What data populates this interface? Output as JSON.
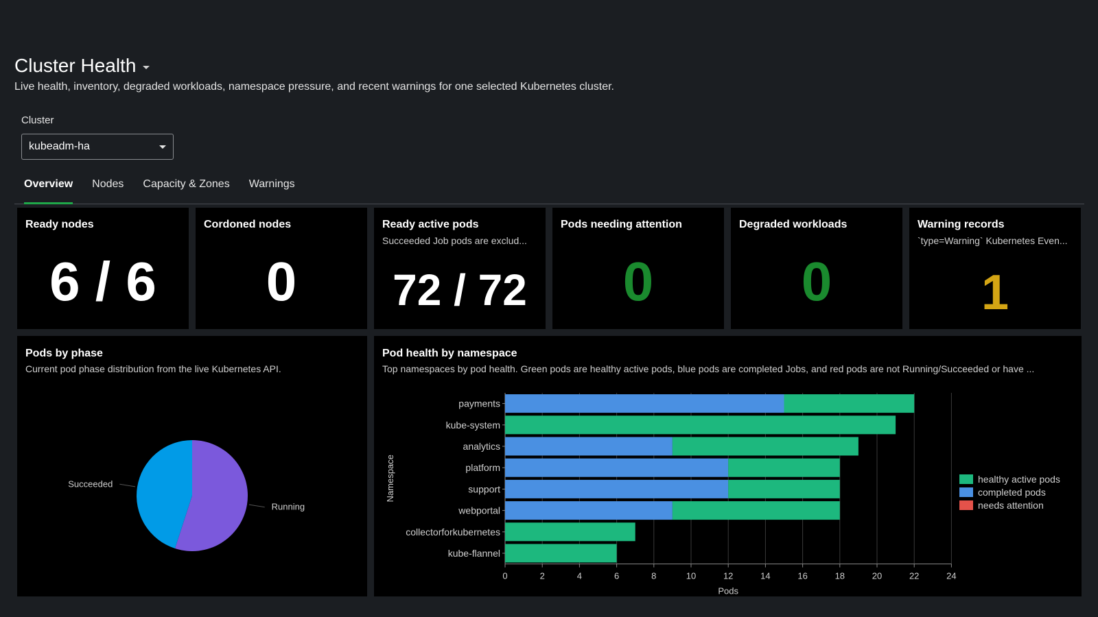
{
  "header": {
    "title": "Cluster Health",
    "subtitle": "Live health, inventory, degraded workloads, namespace pressure, and recent warnings for one selected Kubernetes cluster."
  },
  "cluster_select": {
    "label": "Cluster",
    "value": "kubeadm-ha"
  },
  "tabs": [
    {
      "label": "Overview",
      "active": true
    },
    {
      "label": "Nodes",
      "active": false
    },
    {
      "label": "Capacity & Zones",
      "active": false
    },
    {
      "label": "Warnings",
      "active": false
    }
  ],
  "kpis": [
    {
      "title": "Ready nodes",
      "desc": "",
      "value": "6 / 6",
      "color": "#ffffff"
    },
    {
      "title": "Cordoned nodes",
      "desc": "",
      "value": "0",
      "color": "#ffffff"
    },
    {
      "title": "Ready active pods",
      "desc": "Succeeded Job pods are exclud...",
      "value": "72 / 72",
      "color": "#ffffff"
    },
    {
      "title": "Pods needing attention",
      "desc": "",
      "value": "0",
      "color": "#1a8a2e"
    },
    {
      "title": "Degraded workloads",
      "desc": "",
      "value": "0",
      "color": "#1a8a2e"
    },
    {
      "title": "Warning records",
      "desc": "`type=Warning` Kubernetes Even...",
      "value": "1",
      "color": "#d4a514"
    }
  ],
  "pods_by_phase": {
    "title": "Pods by phase",
    "desc": "Current pod phase distribution from the live Kubernetes API."
  },
  "pod_health": {
    "title": "Pod health by namespace",
    "desc": "Top namespaces by pod health. Green pods are healthy active pods, blue pods are completed Jobs, and red pods are not Running/Succeeded or have ..."
  },
  "chart_data": [
    {
      "type": "pie",
      "labels": [
        "Running",
        "Succeeded"
      ],
      "values": [
        55,
        45
      ],
      "colors": [
        "#7b59dc",
        "#019be7"
      ]
    },
    {
      "type": "bar",
      "orientation": "horizontal",
      "stacked": true,
      "categories": [
        "payments",
        "kube-system",
        "analytics",
        "platform",
        "support",
        "webportal",
        "collectorforkubernetes",
        "kube-flannel"
      ],
      "series": [
        {
          "name": "completed pods",
          "color": "#4a90e2",
          "values": [
            15,
            0,
            9,
            12,
            12,
            9,
            0,
            0
          ]
        },
        {
          "name": "healthy active pods",
          "color": "#1db87e",
          "values": [
            7,
            21,
            10,
            6,
            6,
            9,
            7,
            6
          ]
        },
        {
          "name": "needs attention",
          "color": "#e4524a",
          "values": [
            0,
            0,
            0,
            0,
            0,
            0,
            0,
            0
          ]
        }
      ],
      "legend": [
        "healthy active pods",
        "completed pods",
        "needs attention"
      ],
      "legend_position": "right",
      "xlabel": "Pods",
      "ylabel": "Namespace",
      "xlim": [
        0,
        24
      ],
      "xticks": [
        0,
        2,
        4,
        6,
        8,
        10,
        12,
        14,
        16,
        18,
        20,
        22,
        24
      ],
      "grid": true
    }
  ]
}
